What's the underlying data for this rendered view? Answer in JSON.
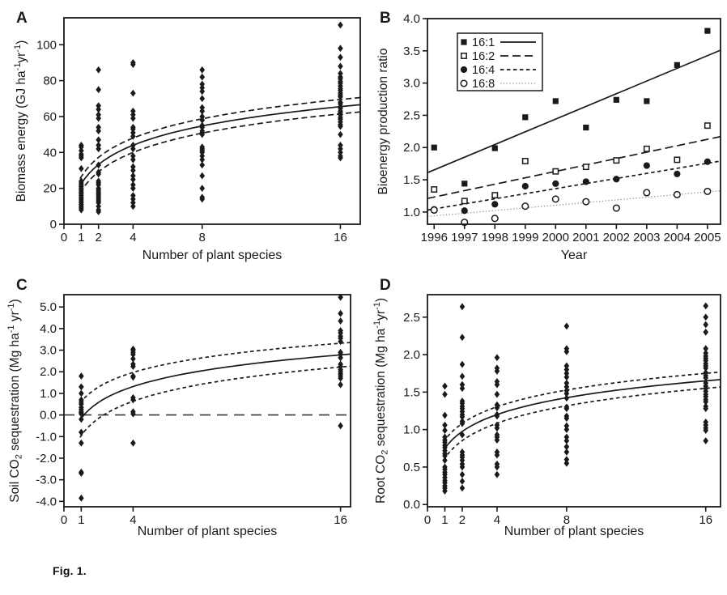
{
  "colors": {
    "ink": "#1a1a1a",
    "muted_line": "#999999",
    "ref_line": "#3a3a3a",
    "background": "#ffffff"
  },
  "caption": {
    "label": "Fig. 1."
  },
  "chart_data": [
    {
      "panel": "A",
      "type": "scatter",
      "xlabel": "Number of plant species",
      "ylabel_rich": [
        {
          "t": "Biomass energy (GJ ha"
        },
        {
          "t": "-1",
          "s": "sup"
        },
        {
          "t": "yr"
        },
        {
          "t": "-1",
          "s": "sup"
        },
        {
          "t": ")"
        }
      ],
      "xlim": [
        0,
        17.15
      ],
      "ylim": [
        0,
        115
      ],
      "grid": false,
      "xticks": [
        {
          "v": 0,
          "l": "0"
        },
        {
          "v": 1,
          "l": "1"
        },
        {
          "v": 2,
          "l": "2"
        },
        {
          "v": 4,
          "l": "4"
        },
        {
          "v": 8,
          "l": "8"
        },
        {
          "v": 16,
          "l": "16"
        }
      ],
      "yticks": [
        {
          "v": 0,
          "l": "0"
        },
        {
          "v": 20,
          "l": "20"
        },
        {
          "v": 40,
          "l": "40"
        },
        {
          "v": 60,
          "l": "60"
        },
        {
          "v": 80,
          "l": "80"
        },
        {
          "v": 100,
          "l": "100"
        }
      ],
      "clusters": [
        {
          "x": 1,
          "ys": [
            44,
            43,
            41,
            39,
            38,
            37,
            31,
            24,
            23,
            22,
            21,
            20,
            19,
            18,
            17,
            16,
            15,
            14,
            13,
            12,
            11,
            10,
            9,
            8
          ]
        },
        {
          "x": 2,
          "ys": [
            86,
            75,
            66,
            64,
            61,
            59,
            54,
            52,
            47,
            44,
            42,
            33,
            29,
            28,
            24,
            23,
            22,
            20,
            19,
            18,
            17,
            16,
            15,
            14,
            13,
            12,
            10,
            8,
            7
          ]
        },
        {
          "x": 4,
          "ys": [
            90,
            89,
            73,
            63,
            61,
            59,
            54,
            53,
            51,
            49,
            44,
            42,
            38,
            36,
            32,
            30,
            27,
            25,
            22,
            20,
            16,
            14,
            12,
            10
          ]
        },
        {
          "x": 8,
          "ys": [
            86,
            82,
            78,
            76,
            74,
            70,
            65,
            63,
            60,
            58,
            55,
            54,
            52,
            51,
            50,
            43,
            42,
            41,
            40,
            38,
            36,
            33,
            27,
            20,
            15,
            14
          ]
        },
        {
          "x": 16,
          "ys": [
            111,
            98,
            93,
            88,
            84,
            82,
            81,
            79.5,
            78.5,
            77,
            75.5,
            74.5,
            73,
            72,
            71,
            68,
            67,
            65.5,
            64.5,
            63,
            62,
            61,
            59.5,
            58.5,
            57,
            55.5,
            54.5,
            50,
            44,
            42,
            40,
            38,
            37
          ]
        }
      ],
      "fit": {
        "model": "y = y0 + (y1-y0)*ln(x)/ln(16)",
        "x0": 1,
        "x1": 16,
        "solid": [
          22.5,
          65.5
        ],
        "upper": [
          26.5,
          69.5
        ],
        "lower": [
          18.5,
          61.5
        ]
      }
    },
    {
      "panel": "B",
      "type": "line-scatter",
      "xlabel": "Year",
      "ylabel_rich": [
        {
          "t": "Bioenergy production ratio"
        }
      ],
      "xlim": [
        1995.78,
        2005.43
      ],
      "ylim": [
        0.81,
        4.0
      ],
      "grid": false,
      "xticks": [
        {
          "v": 1996,
          "l": "1996"
        },
        {
          "v": 1997,
          "l": "1997"
        },
        {
          "v": 1998,
          "l": "1998"
        },
        {
          "v": 1999,
          "l": "1999"
        },
        {
          "v": 2000,
          "l": "2000"
        },
        {
          "v": 2001,
          "l": "2001"
        },
        {
          "v": 2002,
          "l": "2002"
        },
        {
          "v": 2003,
          "l": "2003"
        },
        {
          "v": 2004,
          "l": "2004"
        },
        {
          "v": 2005,
          "l": "2005"
        }
      ],
      "yticks": [
        {
          "v": 1.0,
          "l": "1.0"
        },
        {
          "v": 1.5,
          "l": "1.5"
        },
        {
          "v": 2.0,
          "l": "2.0"
        },
        {
          "v": 2.5,
          "l": "2.5"
        },
        {
          "v": 3.0,
          "l": "3.0"
        },
        {
          "v": 3.5,
          "l": "3.5"
        },
        {
          "v": 4.0,
          "l": "4.0"
        }
      ],
      "series": [
        {
          "name": "16:1",
          "marker": "square_filled",
          "line": "solid",
          "line_color": "#1a1a1a",
          "x": [
            1996,
            1997,
            1998,
            1999,
            2000,
            2001,
            2002,
            2003,
            2004,
            2005
          ],
          "y": [
            2.0,
            1.44,
            1.99,
            2.47,
            2.72,
            2.31,
            2.74,
            2.72,
            3.28,
            3.81
          ],
          "trend": [
            1.61,
            3.51
          ]
        },
        {
          "name": "16:2",
          "marker": "square_open",
          "line": "longdash",
          "line_color": "#1a1a1a",
          "x": [
            1996,
            1997,
            1998,
            1999,
            2000,
            2001,
            2002,
            2003,
            2004,
            2005
          ],
          "y": [
            1.35,
            1.17,
            1.26,
            1.79,
            1.63,
            1.7,
            1.8,
            1.98,
            1.81,
            2.34
          ],
          "trend": [
            1.21,
            2.17
          ]
        },
        {
          "name": "16:4",
          "marker": "circle_filled",
          "line": "shortdash",
          "line_color": "#1a1a1a",
          "x": [
            1996,
            1997,
            1998,
            1999,
            2000,
            2001,
            2002,
            2003,
            2004,
            2005
          ],
          "y": [
            1.04,
            1.02,
            1.12,
            1.4,
            1.44,
            1.47,
            1.51,
            1.72,
            1.59,
            1.78
          ],
          "trend": [
            1.03,
            1.79
          ]
        },
        {
          "name": "16:8",
          "marker": "circle_open",
          "line": "dot",
          "line_color": "#999999",
          "x": [
            1996,
            1997,
            1998,
            1999,
            2000,
            2001,
            2002,
            2003,
            2004,
            2005
          ],
          "y": [
            1.03,
            0.84,
            0.9,
            1.09,
            1.2,
            1.16,
            1.06,
            1.3,
            1.27,
            1.32
          ],
          "trend": [
            0.93,
            1.33
          ]
        }
      ],
      "legend": {
        "position": "top-left",
        "items": [
          {
            "label": "16:1",
            "marker": "square_filled",
            "line": "solid",
            "line_color": "#1a1a1a"
          },
          {
            "label": "16:2",
            "marker": "square_open",
            "line": "longdash",
            "line_color": "#1a1a1a"
          },
          {
            "label": "16:4",
            "marker": "circle_filled",
            "line": "shortdash",
            "line_color": "#1a1a1a"
          },
          {
            "label": "16:8",
            "marker": "circle_open",
            "line": "dot",
            "line_color": "#999999"
          }
        ]
      }
    },
    {
      "panel": "C",
      "type": "scatter",
      "xlabel": "Number of plant species",
      "ylabel_rich": [
        {
          "t": "Soil CO"
        },
        {
          "t": "2",
          "s": "sub"
        },
        {
          "t": " sequestration (Mg ha"
        },
        {
          "t": "-1",
          "s": "sup"
        },
        {
          "t": " yr"
        },
        {
          "t": "-1",
          "s": "sup"
        },
        {
          "t": ")"
        }
      ],
      "xlim": [
        0,
        16.58
      ],
      "ylim": [
        -4.25,
        5.57
      ],
      "grid": false,
      "xticks": [
        {
          "v": 0,
          "l": "0"
        },
        {
          "v": 1,
          "l": "1"
        },
        {
          "v": 4,
          "l": "4"
        },
        {
          "v": 16,
          "l": "16"
        }
      ],
      "yticks": [
        {
          "v": -4.0,
          "l": "-4.0"
        },
        {
          "v": -3.0,
          "l": "-3.0"
        },
        {
          "v": -2.0,
          "l": "-2.0"
        },
        {
          "v": -1.0,
          "l": "-1.0"
        },
        {
          "v": 0.0,
          "l": "0.0"
        },
        {
          "v": 1.0,
          "l": "1.0"
        },
        {
          "v": 2.0,
          "l": "2.0"
        },
        {
          "v": 3.0,
          "l": "3.0"
        },
        {
          "v": 4.0,
          "l": "4.0"
        },
        {
          "v": 5.0,
          "l": "5.0"
        }
      ],
      "ref_line": {
        "y": 0.0,
        "style": "longdash"
      },
      "clusters": [
        {
          "x": 1,
          "ys": [
            1.8,
            1.3,
            1.0,
            0.7,
            0.6,
            0.5,
            0.35,
            0.25,
            0.15,
            0.1,
            0.05,
            -0.2,
            -0.8,
            -1.3,
            -2.65,
            -2.7,
            -3.85
          ]
        },
        {
          "x": 4,
          "ys": [
            3.05,
            3.0,
            2.9,
            2.8,
            2.6,
            2.35,
            2.25,
            1.8,
            1.75,
            0.8,
            0.7,
            0.15,
            0.05,
            -1.3
          ]
        },
        {
          "x": 16,
          "ys": [
            5.45,
            4.7,
            4.35,
            3.9,
            3.8,
            3.65,
            3.55,
            3.4,
            2.9,
            2.8,
            2.65,
            2.35,
            2.25,
            2.1,
            2.0,
            1.9,
            1.8,
            1.7,
            1.4,
            -0.5
          ]
        }
      ],
      "fit": {
        "model": "y = y0 + (y1-y0)*ln(x)/ln(16)",
        "x0": 1,
        "x1": 16,
        "solid": [
          -0.15,
          2.78
        ],
        "upper": [
          0.62,
          3.32
        ],
        "lower": [
          -0.95,
          2.22
        ]
      }
    },
    {
      "panel": "D",
      "type": "scatter",
      "xlabel": "Number of plant species",
      "ylabel_rich": [
        {
          "t": "Root CO"
        },
        {
          "t": "2",
          "s": "sub"
        },
        {
          "t": " sequestration (Mg ha"
        },
        {
          "t": "-1",
          "s": "sup"
        },
        {
          "t": "yr"
        },
        {
          "t": "-1",
          "s": "sup"
        },
        {
          "t": ")"
        }
      ],
      "xlim": [
        0,
        16.85
      ],
      "ylim": [
        -0.03,
        2.8
      ],
      "grid": false,
      "xticks": [
        {
          "v": 0,
          "l": "0"
        },
        {
          "v": 1,
          "l": "1"
        },
        {
          "v": 2,
          "l": "2"
        },
        {
          "v": 4,
          "l": "4"
        },
        {
          "v": 8,
          "l": "8"
        },
        {
          "v": 16,
          "l": "16"
        }
      ],
      "yticks": [
        {
          "v": 0.0,
          "l": "0.0"
        },
        {
          "v": 0.5,
          "l": "0.5"
        },
        {
          "v": 1.0,
          "l": "1.0"
        },
        {
          "v": 1.5,
          "l": "1.5"
        },
        {
          "v": 2.0,
          "l": "2.0"
        },
        {
          "v": 2.5,
          "l": "2.5"
        }
      ],
      "clusters": [
        {
          "x": 1,
          "ys": [
            1.58,
            1.47,
            1.19,
            1.06,
            0.99,
            0.9,
            0.86,
            0.83,
            0.79,
            0.76,
            0.72,
            0.68,
            0.65,
            0.59,
            0.5,
            0.47,
            0.43,
            0.4,
            0.36,
            0.32,
            0.29,
            0.25,
            0.22,
            0.18
          ]
        },
        {
          "x": 2,
          "ys": [
            2.64,
            2.23,
            1.87,
            1.71,
            1.6,
            1.55,
            1.38,
            1.35,
            1.31,
            1.28,
            1.24,
            1.2,
            1.17,
            1.11,
            1.08,
            0.93,
            0.7,
            0.66,
            0.63,
            0.59,
            0.54,
            0.5,
            0.4,
            0.31,
            0.22
          ]
        },
        {
          "x": 4,
          "ys": [
            1.96,
            1.82,
            1.78,
            1.64,
            1.6,
            1.47,
            1.33,
            1.29,
            1.2,
            1.18,
            1.06,
            1.02,
            0.93,
            0.9,
            0.86,
            0.7,
            0.66,
            0.54,
            0.5,
            0.4
          ]
        },
        {
          "x": 8,
          "ys": [
            2.38,
            2.08,
            2.04,
            1.85,
            1.8,
            1.75,
            1.7,
            1.62,
            1.57,
            1.52,
            1.48,
            1.42,
            1.3,
            1.28,
            1.18,
            1.15,
            1.05,
            1.0,
            0.9,
            0.85,
            0.77,
            0.7,
            0.6,
            0.55
          ]
        },
        {
          "x": 16,
          "ys": [
            2.65,
            2.5,
            2.4,
            2.3,
            2.08,
            2.02,
            1.98,
            1.95,
            1.92,
            1.88,
            1.85,
            1.82,
            1.76,
            1.72,
            1.69,
            1.62,
            1.58,
            1.55,
            1.51,
            1.47,
            1.44,
            1.4,
            1.37,
            1.31,
            1.28,
            1.1,
            1.06,
            1.02,
            0.99,
            0.85
          ]
        }
      ],
      "fit": {
        "model": "y = y0 + (y1-y0)*ln(x)/ln(16)",
        "x0": 1,
        "x1": 16,
        "solid": [
          0.75,
          1.65
        ],
        "upper": [
          0.86,
          1.75
        ],
        "lower": [
          0.62,
          1.55
        ]
      }
    }
  ]
}
